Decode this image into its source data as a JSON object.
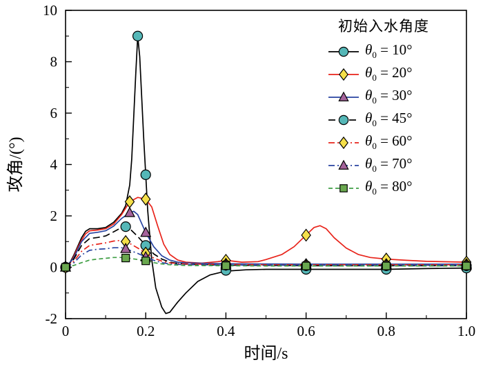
{
  "figure": {
    "x_axis_label": "时间/s",
    "y_axis_label": "攻角/(°)"
  },
  "legend": {
    "title": "初始入水角度",
    "items": [
      {
        "sym": "θ",
        "sub": "0",
        "rest": " = 10°"
      },
      {
        "sym": "θ",
        "sub": "0",
        "rest": " = 20°"
      },
      {
        "sym": "θ",
        "sub": "0",
        "rest": " = 30°"
      },
      {
        "sym": "θ",
        "sub": "0",
        "rest": " = 45°"
      },
      {
        "sym": "θ",
        "sub": "0",
        "rest": " = 60°"
      },
      {
        "sym": "θ",
        "sub": "0",
        "rest": " = 70°"
      },
      {
        "sym": "θ",
        "sub": "0",
        "rest": " = 80°"
      }
    ]
  },
  "chart_data": {
    "type": "line",
    "title": "",
    "xlabel": "时间/s",
    "ylabel": "攻角/(°)",
    "xlim": [
      0,
      1.0
    ],
    "ylim": [
      -2,
      10
    ],
    "x_ticks": [
      0,
      0.2,
      0.4,
      0.6,
      0.8,
      1.0
    ],
    "x_tick_labels": [
      "0",
      "0.2",
      "0.4",
      "0.6",
      "0.8",
      "1.0"
    ],
    "x_minor_ticks": [
      0.1,
      0.3,
      0.5,
      0.7,
      0.9
    ],
    "y_ticks": [
      -2,
      0,
      2,
      4,
      6,
      8,
      10
    ],
    "y_tick_labels": [
      "-2",
      "0",
      "2",
      "4",
      "6",
      "8",
      "10"
    ],
    "y_minor_ticks": [
      -1,
      1,
      3,
      5,
      7,
      9
    ],
    "grid": false,
    "legend_position": "top-right",
    "series": [
      {
        "name": "θ0 = 10°",
        "line_color": "#000000",
        "line_style": "solid",
        "dash": "",
        "marker": "circle",
        "marker_color": "#55b7b7",
        "points": [
          [
            0,
            0
          ],
          [
            0.01,
            0.15
          ],
          [
            0.02,
            0.45
          ],
          [
            0.03,
            0.8
          ],
          [
            0.04,
            1.15
          ],
          [
            0.05,
            1.4
          ],
          [
            0.06,
            1.5
          ],
          [
            0.08,
            1.5
          ],
          [
            0.1,
            1.55
          ],
          [
            0.12,
            1.75
          ],
          [
            0.14,
            2.1
          ],
          [
            0.15,
            2.4
          ],
          [
            0.16,
            3.2
          ],
          [
            0.165,
            4.2
          ],
          [
            0.175,
            7.5
          ],
          [
            0.18,
            9.0
          ],
          [
            0.185,
            8.2
          ],
          [
            0.195,
            5.0
          ],
          [
            0.2,
            3.6
          ],
          [
            0.205,
            2.2
          ],
          [
            0.215,
            0.3
          ],
          [
            0.225,
            -0.8
          ],
          [
            0.24,
            -1.55
          ],
          [
            0.25,
            -1.8
          ],
          [
            0.26,
            -1.75
          ],
          [
            0.28,
            -1.35
          ],
          [
            0.3,
            -1.0
          ],
          [
            0.33,
            -0.55
          ],
          [
            0.36,
            -0.3
          ],
          [
            0.4,
            -0.15
          ],
          [
            0.45,
            -0.1
          ],
          [
            0.5,
            -0.08
          ],
          [
            0.6,
            -0.08
          ],
          [
            0.7,
            -0.08
          ],
          [
            0.8,
            -0.08
          ],
          [
            0.9,
            -0.05
          ],
          [
            1.0,
            -0.03
          ]
        ],
        "marker_points": [
          [
            0,
            0
          ],
          [
            0.18,
            9.0
          ],
          [
            0.2,
            3.6
          ],
          [
            0.4,
            -0.12
          ],
          [
            0.6,
            -0.08
          ],
          [
            0.8,
            -0.08
          ],
          [
            1.0,
            -0.03
          ]
        ]
      },
      {
        "name": "θ0 = 20°",
        "line_color": "#e8231a",
        "line_style": "solid",
        "dash": "",
        "marker": "diamond",
        "marker_color": "#f5e04a",
        "points": [
          [
            0,
            0
          ],
          [
            0.01,
            0.12
          ],
          [
            0.02,
            0.4
          ],
          [
            0.03,
            0.75
          ],
          [
            0.04,
            1.05
          ],
          [
            0.05,
            1.3
          ],
          [
            0.06,
            1.42
          ],
          [
            0.08,
            1.45
          ],
          [
            0.1,
            1.5
          ],
          [
            0.12,
            1.68
          ],
          [
            0.14,
            2.05
          ],
          [
            0.16,
            2.55
          ],
          [
            0.18,
            2.72
          ],
          [
            0.2,
            2.65
          ],
          [
            0.215,
            2.35
          ],
          [
            0.23,
            1.6
          ],
          [
            0.245,
            0.9
          ],
          [
            0.26,
            0.5
          ],
          [
            0.28,
            0.28
          ],
          [
            0.3,
            0.2
          ],
          [
            0.34,
            0.16
          ],
          [
            0.38,
            0.22
          ],
          [
            0.4,
            0.27
          ],
          [
            0.44,
            0.2
          ],
          [
            0.48,
            0.22
          ],
          [
            0.5,
            0.3
          ],
          [
            0.54,
            0.5
          ],
          [
            0.57,
            0.8
          ],
          [
            0.6,
            1.25
          ],
          [
            0.62,
            1.55
          ],
          [
            0.635,
            1.62
          ],
          [
            0.65,
            1.5
          ],
          [
            0.67,
            1.15
          ],
          [
            0.7,
            0.75
          ],
          [
            0.73,
            0.5
          ],
          [
            0.76,
            0.38
          ],
          [
            0.8,
            0.32
          ],
          [
            0.85,
            0.27
          ],
          [
            0.9,
            0.23
          ],
          [
            1.0,
            0.2
          ]
        ],
        "marker_points": [
          [
            0,
            0
          ],
          [
            0.16,
            2.55
          ],
          [
            0.2,
            2.65
          ],
          [
            0.4,
            0.27
          ],
          [
            0.6,
            1.25
          ],
          [
            0.8,
            0.32
          ],
          [
            1.0,
            0.2
          ]
        ]
      },
      {
        "name": "θ0 = 30°",
        "line_color": "#2743a0",
        "line_style": "solid",
        "dash": "",
        "marker": "triangle",
        "marker_color": "#a5639b",
        "points": [
          [
            0,
            0
          ],
          [
            0.02,
            0.35
          ],
          [
            0.04,
            1.0
          ],
          [
            0.06,
            1.32
          ],
          [
            0.08,
            1.36
          ],
          [
            0.1,
            1.42
          ],
          [
            0.12,
            1.6
          ],
          [
            0.14,
            1.9
          ],
          [
            0.16,
            2.12
          ],
          [
            0.17,
            2.18
          ],
          [
            0.18,
            2.05
          ],
          [
            0.19,
            1.7
          ],
          [
            0.2,
            1.35
          ],
          [
            0.22,
            0.8
          ],
          [
            0.24,
            0.45
          ],
          [
            0.26,
            0.28
          ],
          [
            0.28,
            0.2
          ],
          [
            0.3,
            0.17
          ],
          [
            0.35,
            0.15
          ],
          [
            0.4,
            0.14
          ],
          [
            0.5,
            0.13
          ],
          [
            0.6,
            0.12
          ],
          [
            0.7,
            0.12
          ],
          [
            0.8,
            0.12
          ],
          [
            0.9,
            0.12
          ],
          [
            1.0,
            0.12
          ]
        ],
        "marker_points": [
          [
            0,
            0
          ],
          [
            0.16,
            2.12
          ],
          [
            0.2,
            1.35
          ],
          [
            0.4,
            0.14
          ],
          [
            0.6,
            0.12
          ],
          [
            0.8,
            0.12
          ],
          [
            1.0,
            0.12
          ]
        ]
      },
      {
        "name": "θ0 = 45°",
        "line_color": "#000000",
        "line_style": "dashed",
        "dash": "10,5",
        "marker": "circle",
        "marker_color": "#55b7b7",
        "points": [
          [
            0,
            0
          ],
          [
            0.02,
            0.3
          ],
          [
            0.04,
            0.85
          ],
          [
            0.06,
            1.12
          ],
          [
            0.08,
            1.16
          ],
          [
            0.1,
            1.22
          ],
          [
            0.12,
            1.38
          ],
          [
            0.14,
            1.55
          ],
          [
            0.15,
            1.58
          ],
          [
            0.16,
            1.5
          ],
          [
            0.18,
            1.2
          ],
          [
            0.2,
            0.85
          ],
          [
            0.22,
            0.52
          ],
          [
            0.24,
            0.32
          ],
          [
            0.26,
            0.2
          ],
          [
            0.28,
            0.15
          ],
          [
            0.3,
            0.12
          ],
          [
            0.4,
            0.08
          ],
          [
            0.5,
            0.07
          ],
          [
            0.6,
            0.06
          ],
          [
            0.7,
            0.06
          ],
          [
            0.8,
            0.06
          ],
          [
            0.9,
            0.06
          ],
          [
            1.0,
            0.06
          ]
        ],
        "marker_points": [
          [
            0,
            0
          ],
          [
            0.15,
            1.58
          ],
          [
            0.2,
            0.85
          ],
          [
            0.4,
            0.08
          ],
          [
            0.6,
            0.06
          ],
          [
            0.8,
            0.06
          ],
          [
            1.0,
            0.06
          ]
        ]
      },
      {
        "name": "θ0 = 60°",
        "line_color": "#e8231a",
        "line_style": "dash-dot",
        "dash": "9,4,2,4",
        "marker": "diamond",
        "marker_color": "#f5e04a",
        "points": [
          [
            0,
            0
          ],
          [
            0.02,
            0.22
          ],
          [
            0.04,
            0.62
          ],
          [
            0.06,
            0.85
          ],
          [
            0.08,
            0.9
          ],
          [
            0.1,
            0.95
          ],
          [
            0.12,
            1.02
          ],
          [
            0.14,
            1.05
          ],
          [
            0.15,
            1.0
          ],
          [
            0.16,
            0.93
          ],
          [
            0.18,
            0.75
          ],
          [
            0.2,
            0.55
          ],
          [
            0.22,
            0.36
          ],
          [
            0.24,
            0.24
          ],
          [
            0.26,
            0.17
          ],
          [
            0.3,
            0.13
          ],
          [
            0.4,
            0.11
          ],
          [
            0.5,
            0.1
          ],
          [
            0.6,
            0.1
          ],
          [
            0.7,
            0.1
          ],
          [
            0.8,
            0.1
          ],
          [
            0.9,
            0.1
          ],
          [
            1.0,
            0.1
          ]
        ],
        "marker_points": [
          [
            0,
            0
          ],
          [
            0.15,
            1.0
          ],
          [
            0.2,
            0.55
          ],
          [
            0.4,
            0.11
          ],
          [
            0.6,
            0.1
          ],
          [
            0.8,
            0.1
          ],
          [
            1.0,
            0.1
          ]
        ]
      },
      {
        "name": "θ0 = 70°",
        "line_color": "#2743a0",
        "line_style": "dash-dot",
        "dash": "9,4,2,4",
        "marker": "triangle",
        "marker_color": "#a5639b",
        "points": [
          [
            0,
            0
          ],
          [
            0.02,
            0.16
          ],
          [
            0.04,
            0.48
          ],
          [
            0.06,
            0.66
          ],
          [
            0.08,
            0.7
          ],
          [
            0.1,
            0.72
          ],
          [
            0.12,
            0.76
          ],
          [
            0.14,
            0.76
          ],
          [
            0.15,
            0.72
          ],
          [
            0.16,
            0.66
          ],
          [
            0.18,
            0.54
          ],
          [
            0.2,
            0.4
          ],
          [
            0.22,
            0.27
          ],
          [
            0.24,
            0.18
          ],
          [
            0.26,
            0.13
          ],
          [
            0.3,
            0.1
          ],
          [
            0.4,
            0.09
          ],
          [
            0.5,
            0.08
          ],
          [
            0.6,
            0.08
          ],
          [
            0.7,
            0.08
          ],
          [
            0.8,
            0.08
          ],
          [
            0.9,
            0.08
          ],
          [
            1.0,
            0.08
          ]
        ],
        "marker_points": [
          [
            0,
            0
          ],
          [
            0.15,
            0.72
          ],
          [
            0.2,
            0.4
          ],
          [
            0.4,
            0.09
          ],
          [
            0.6,
            0.08
          ],
          [
            0.8,
            0.08
          ],
          [
            1.0,
            0.08
          ]
        ]
      },
      {
        "name": "θ0 = 80°",
        "line_color": "#3f9e44",
        "line_style": "dashed",
        "dash": "6,4",
        "marker": "square",
        "marker_color": "#6aa84f",
        "points": [
          [
            0,
            0
          ],
          [
            0.02,
            0.07
          ],
          [
            0.04,
            0.18
          ],
          [
            0.06,
            0.28
          ],
          [
            0.08,
            0.32
          ],
          [
            0.1,
            0.35
          ],
          [
            0.12,
            0.38
          ],
          [
            0.14,
            0.38
          ],
          [
            0.16,
            0.35
          ],
          [
            0.18,
            0.3
          ],
          [
            0.2,
            0.25
          ],
          [
            0.22,
            0.18
          ],
          [
            0.24,
            0.13
          ],
          [
            0.26,
            0.1
          ],
          [
            0.3,
            0.07
          ],
          [
            0.4,
            0.06
          ],
          [
            0.5,
            0.05
          ],
          [
            0.6,
            0.05
          ],
          [
            0.7,
            0.05
          ],
          [
            0.8,
            0.05
          ],
          [
            0.9,
            0.05
          ],
          [
            1.0,
            0.05
          ]
        ],
        "marker_points": [
          [
            0,
            0
          ],
          [
            0.15,
            0.36
          ],
          [
            0.2,
            0.25
          ],
          [
            0.4,
            0.06
          ],
          [
            0.6,
            0.05
          ],
          [
            0.8,
            0.05
          ],
          [
            1.0,
            0.05
          ]
        ]
      }
    ]
  }
}
